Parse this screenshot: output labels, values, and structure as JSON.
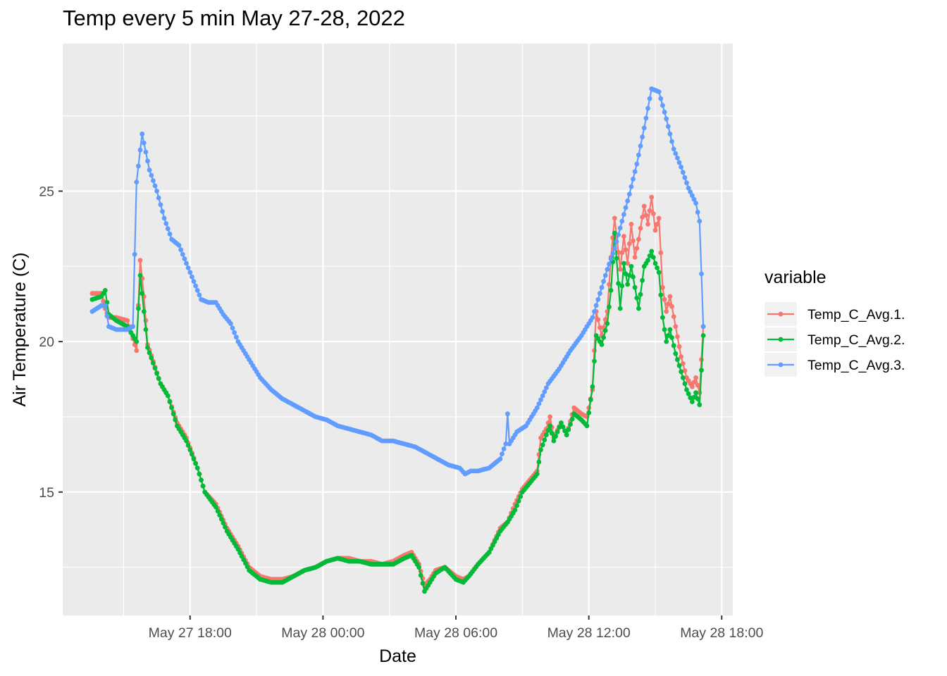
{
  "chart_data": {
    "type": "line",
    "title": "Temp every 5 min May 27-28, 2022",
    "xlabel": "Date",
    "ylabel": "Air Temperature (C)",
    "x_axis_type": "datetime",
    "xlim": [
      "2022-05-27 12:15",
      "2022-05-28 18:30"
    ],
    "ylim": [
      10.9,
      29.9
    ],
    "x_ticks": [
      {
        "t": "2022-05-27 18:00",
        "label": "May 27 18:00"
      },
      {
        "t": "2022-05-28 00:00",
        "label": "May 28 00:00"
      },
      {
        "t": "2022-05-28 06:00",
        "label": "May 28 06:00"
      },
      {
        "t": "2022-05-28 12:00",
        "label": "May 28 12:00"
      },
      {
        "t": "2022-05-28 18:00",
        "label": "May 28 18:00"
      }
    ],
    "y_ticks": [
      15,
      20,
      25
    ],
    "grid": true,
    "legend": {
      "title": "variable",
      "position": "right"
    },
    "series": [
      {
        "name": "Temp_C_Avg.1.",
        "color": "#F8766D",
        "points": [
          [
            "2022-05-27 13:35",
            21.6
          ],
          [
            "2022-05-27 14:00",
            21.6
          ],
          [
            "2022-05-27 14:10",
            21.1
          ],
          [
            "2022-05-27 14:20",
            20.8
          ],
          [
            "2022-05-27 14:40",
            20.8
          ],
          [
            "2022-05-27 15:10",
            20.7
          ],
          [
            "2022-05-27 15:35",
            19.7
          ],
          [
            "2022-05-27 15:45",
            22.7
          ],
          [
            "2022-05-27 15:55",
            21.5
          ],
          [
            "2022-05-27 16:05",
            19.9
          ],
          [
            "2022-05-27 16:40",
            18.6
          ],
          [
            "2022-05-27 17:00",
            18.2
          ],
          [
            "2022-05-27 17:25",
            17.3
          ],
          [
            "2022-05-27 17:50",
            16.8
          ],
          [
            "2022-05-27 18:20",
            15.8
          ],
          [
            "2022-05-27 18:40",
            15.0
          ],
          [
            "2022-05-27 19:10",
            14.6
          ],
          [
            "2022-05-27 19:40",
            13.8
          ],
          [
            "2022-05-27 20:10",
            13.2
          ],
          [
            "2022-05-27 20:40",
            12.5
          ],
          [
            "2022-05-27 21:10",
            12.2
          ],
          [
            "2022-05-27 21:40",
            12.1
          ],
          [
            "2022-05-27 22:10",
            12.1
          ],
          [
            "2022-05-27 22:40",
            12.2
          ],
          [
            "2022-05-27 23:10",
            12.4
          ],
          [
            "2022-05-27 23:40",
            12.5
          ],
          [
            "2022-05-28 00:10",
            12.7
          ],
          [
            "2022-05-28 00:40",
            12.8
          ],
          [
            "2022-05-28 01:10",
            12.8
          ],
          [
            "2022-05-28 01:40",
            12.7
          ],
          [
            "2022-05-28 02:10",
            12.7
          ],
          [
            "2022-05-28 02:40",
            12.6
          ],
          [
            "2022-05-28 03:10",
            12.7
          ],
          [
            "2022-05-28 03:40",
            12.9
          ],
          [
            "2022-05-28 04:00",
            13.0
          ],
          [
            "2022-05-28 04:20",
            12.6
          ],
          [
            "2022-05-28 04:35",
            11.9
          ],
          [
            "2022-05-28 04:50",
            12.1
          ],
          [
            "2022-05-28 05:05",
            12.4
          ],
          [
            "2022-05-28 05:30",
            12.5
          ],
          [
            "2022-05-28 06:00",
            12.2
          ],
          [
            "2022-05-28 06:20",
            12.1
          ],
          [
            "2022-05-28 06:35",
            12.2
          ],
          [
            "2022-05-28 07:00",
            12.6
          ],
          [
            "2022-05-28 07:30",
            13.0
          ],
          [
            "2022-05-28 08:00",
            13.8
          ],
          [
            "2022-05-28 08:20",
            14.0
          ],
          [
            "2022-05-28 08:40",
            14.6
          ],
          [
            "2022-05-28 09:00",
            15.1
          ],
          [
            "2022-05-28 09:20",
            15.4
          ],
          [
            "2022-05-28 09:40",
            15.7
          ],
          [
            "2022-05-28 09:50",
            16.8
          ],
          [
            "2022-05-28 10:05",
            17.1
          ],
          [
            "2022-05-28 10:15",
            17.5
          ],
          [
            "2022-05-28 10:25",
            16.8
          ],
          [
            "2022-05-28 10:45",
            17.3
          ],
          [
            "2022-05-28 11:00",
            16.9
          ],
          [
            "2022-05-28 11:20",
            17.8
          ],
          [
            "2022-05-28 11:40",
            17.6
          ],
          [
            "2022-05-28 11:55",
            17.5
          ],
          [
            "2022-05-28 12:10",
            18.4
          ],
          [
            "2022-05-28 12:20",
            21.0
          ],
          [
            "2022-05-28 12:35",
            20.2
          ],
          [
            "2022-05-28 12:50",
            21.0
          ],
          [
            "2022-05-28 13:00",
            22.8
          ],
          [
            "2022-05-28 13:10",
            24.1
          ],
          [
            "2022-05-28 13:25",
            22.4
          ],
          [
            "2022-05-28 13:35",
            23.5
          ],
          [
            "2022-05-28 13:45",
            22.6
          ],
          [
            "2022-05-28 13:55",
            23.9
          ],
          [
            "2022-05-28 14:05",
            22.8
          ],
          [
            "2022-05-28 14:15",
            23.4
          ],
          [
            "2022-05-28 14:30",
            24.5
          ],
          [
            "2022-05-28 14:40",
            23.9
          ],
          [
            "2022-05-28 14:50",
            24.8
          ],
          [
            "2022-05-28 15:00",
            23.7
          ],
          [
            "2022-05-28 15:10",
            24.1
          ],
          [
            "2022-05-28 15:20",
            21.8
          ],
          [
            "2022-05-28 15:30",
            21.0
          ],
          [
            "2022-05-28 15:40",
            21.5
          ],
          [
            "2022-05-28 15:55",
            20.5
          ],
          [
            "2022-05-28 16:10",
            19.5
          ],
          [
            "2022-05-28 16:25",
            18.8
          ],
          [
            "2022-05-28 16:40",
            18.5
          ],
          [
            "2022-05-28 16:50",
            18.8
          ],
          [
            "2022-05-28 17:00",
            18.3
          ],
          [
            "2022-05-28 17:10",
            20.5
          ]
        ]
      },
      {
        "name": "Temp_C_Avg.2.",
        "color": "#00BA38",
        "points": [
          [
            "2022-05-27 13:35",
            21.4
          ],
          [
            "2022-05-27 14:00",
            21.5
          ],
          [
            "2022-05-27 14:10",
            21.7
          ],
          [
            "2022-05-27 14:20",
            20.9
          ],
          [
            "2022-05-27 14:40",
            20.7
          ],
          [
            "2022-05-27 15:10",
            20.5
          ],
          [
            "2022-05-27 15:35",
            20.0
          ],
          [
            "2022-05-27 15:45",
            22.2
          ],
          [
            "2022-05-27 15:55",
            21.0
          ],
          [
            "2022-05-27 16:05",
            19.8
          ],
          [
            "2022-05-27 16:40",
            18.6
          ],
          [
            "2022-05-27 17:00",
            18.2
          ],
          [
            "2022-05-27 17:25",
            17.2
          ],
          [
            "2022-05-27 17:50",
            16.7
          ],
          [
            "2022-05-27 18:20",
            15.8
          ],
          [
            "2022-05-27 18:40",
            15.0
          ],
          [
            "2022-05-27 19:10",
            14.5
          ],
          [
            "2022-05-27 19:40",
            13.7
          ],
          [
            "2022-05-27 20:10",
            13.1
          ],
          [
            "2022-05-27 20:40",
            12.4
          ],
          [
            "2022-05-27 21:10",
            12.1
          ],
          [
            "2022-05-27 21:40",
            12.0
          ],
          [
            "2022-05-27 22:10",
            12.0
          ],
          [
            "2022-05-27 22:40",
            12.2
          ],
          [
            "2022-05-27 23:10",
            12.4
          ],
          [
            "2022-05-27 23:40",
            12.5
          ],
          [
            "2022-05-28 00:10",
            12.7
          ],
          [
            "2022-05-28 00:40",
            12.8
          ],
          [
            "2022-05-28 01:10",
            12.7
          ],
          [
            "2022-05-28 01:40",
            12.7
          ],
          [
            "2022-05-28 02:10",
            12.6
          ],
          [
            "2022-05-28 02:40",
            12.6
          ],
          [
            "2022-05-28 03:10",
            12.6
          ],
          [
            "2022-05-28 03:40",
            12.8
          ],
          [
            "2022-05-28 04:00",
            12.9
          ],
          [
            "2022-05-28 04:20",
            12.5
          ],
          [
            "2022-05-28 04:35",
            11.7
          ],
          [
            "2022-05-28 04:50",
            12.0
          ],
          [
            "2022-05-28 05:05",
            12.3
          ],
          [
            "2022-05-28 05:30",
            12.5
          ],
          [
            "2022-05-28 06:00",
            12.1
          ],
          [
            "2022-05-28 06:20",
            12.0
          ],
          [
            "2022-05-28 06:35",
            12.2
          ],
          [
            "2022-05-28 07:00",
            12.6
          ],
          [
            "2022-05-28 07:30",
            13.0
          ],
          [
            "2022-05-28 08:00",
            13.7
          ],
          [
            "2022-05-28 08:20",
            14.0
          ],
          [
            "2022-05-28 08:40",
            14.4
          ],
          [
            "2022-05-28 09:00",
            15.0
          ],
          [
            "2022-05-28 09:20",
            15.3
          ],
          [
            "2022-05-28 09:40",
            15.6
          ],
          [
            "2022-05-28 09:50",
            16.4
          ],
          [
            "2022-05-28 10:05",
            16.9
          ],
          [
            "2022-05-28 10:15",
            17.2
          ],
          [
            "2022-05-28 10:25",
            16.7
          ],
          [
            "2022-05-28 10:45",
            17.3
          ],
          [
            "2022-05-28 11:00",
            16.9
          ],
          [
            "2022-05-28 11:20",
            17.6
          ],
          [
            "2022-05-28 11:40",
            17.4
          ],
          [
            "2022-05-28 11:55",
            17.2
          ],
          [
            "2022-05-28 12:10",
            18.5
          ],
          [
            "2022-05-28 12:20",
            20.2
          ],
          [
            "2022-05-28 12:35",
            19.9
          ],
          [
            "2022-05-28 12:50",
            20.6
          ],
          [
            "2022-05-28 13:00",
            21.7
          ],
          [
            "2022-05-28 13:10",
            23.6
          ],
          [
            "2022-05-28 13:25",
            21.1
          ],
          [
            "2022-05-28 13:35",
            22.6
          ],
          [
            "2022-05-28 13:45",
            21.9
          ],
          [
            "2022-05-28 13:55",
            22.5
          ],
          [
            "2022-05-28 14:05",
            21.8
          ],
          [
            "2022-05-28 14:15",
            21.1
          ],
          [
            "2022-05-28 14:30",
            22.5
          ],
          [
            "2022-05-28 14:40",
            22.7
          ],
          [
            "2022-05-28 14:50",
            23.0
          ],
          [
            "2022-05-28 15:00",
            22.6
          ],
          [
            "2022-05-28 15:10",
            22.3
          ],
          [
            "2022-05-28 15:20",
            20.8
          ],
          [
            "2022-05-28 15:30",
            20.0
          ],
          [
            "2022-05-28 15:40",
            20.4
          ],
          [
            "2022-05-28 15:55",
            19.6
          ],
          [
            "2022-05-28 16:10",
            19.0
          ],
          [
            "2022-05-28 16:25",
            18.4
          ],
          [
            "2022-05-28 16:40",
            18.0
          ],
          [
            "2022-05-28 16:50",
            18.3
          ],
          [
            "2022-05-28 17:00",
            17.9
          ],
          [
            "2022-05-28 17:10",
            20.2
          ]
        ]
      },
      {
        "name": "Temp_C_Avg.3.",
        "color": "#619CFF",
        "points": [
          [
            "2022-05-27 13:35",
            21.0
          ],
          [
            "2022-05-27 14:00",
            21.2
          ],
          [
            "2022-05-27 14:10",
            21.2
          ],
          [
            "2022-05-27 14:20",
            20.5
          ],
          [
            "2022-05-27 14:40",
            20.4
          ],
          [
            "2022-05-27 15:10",
            20.4
          ],
          [
            "2022-05-27 15:25",
            20.5
          ],
          [
            "2022-05-27 15:35",
            25.3
          ],
          [
            "2022-05-27 15:50",
            26.9
          ],
          [
            "2022-05-27 16:10",
            25.7
          ],
          [
            "2022-05-27 16:30",
            25.0
          ],
          [
            "2022-05-27 16:50",
            24.1
          ],
          [
            "2022-05-27 17:10",
            23.4
          ],
          [
            "2022-05-27 17:30",
            23.2
          ],
          [
            "2022-05-27 17:50",
            22.6
          ],
          [
            "2022-05-27 18:10",
            22.0
          ],
          [
            "2022-05-27 18:30",
            21.4
          ],
          [
            "2022-05-27 18:50",
            21.3
          ],
          [
            "2022-05-27 19:10",
            21.3
          ],
          [
            "2022-05-27 19:30",
            20.9
          ],
          [
            "2022-05-27 19:50",
            20.6
          ],
          [
            "2022-05-27 20:10",
            20.0
          ],
          [
            "2022-05-27 20:40",
            19.4
          ],
          [
            "2022-05-27 21:10",
            18.8
          ],
          [
            "2022-05-27 21:40",
            18.4
          ],
          [
            "2022-05-27 22:10",
            18.1
          ],
          [
            "2022-05-27 22:40",
            17.9
          ],
          [
            "2022-05-27 23:10",
            17.7
          ],
          [
            "2022-05-27 23:40",
            17.5
          ],
          [
            "2022-05-28 00:10",
            17.4
          ],
          [
            "2022-05-28 00:40",
            17.2
          ],
          [
            "2022-05-28 01:10",
            17.1
          ],
          [
            "2022-05-28 01:40",
            17.0
          ],
          [
            "2022-05-28 02:10",
            16.9
          ],
          [
            "2022-05-28 02:40",
            16.7
          ],
          [
            "2022-05-28 03:10",
            16.7
          ],
          [
            "2022-05-28 03:40",
            16.6
          ],
          [
            "2022-05-28 04:10",
            16.5
          ],
          [
            "2022-05-28 04:40",
            16.3
          ],
          [
            "2022-05-28 05:10",
            16.1
          ],
          [
            "2022-05-28 05:40",
            15.9
          ],
          [
            "2022-05-28 06:10",
            15.8
          ],
          [
            "2022-05-28 06:25",
            15.6
          ],
          [
            "2022-05-28 06:40",
            15.7
          ],
          [
            "2022-05-28 07:00",
            15.7
          ],
          [
            "2022-05-28 07:30",
            15.8
          ],
          [
            "2022-05-28 08:00",
            16.1
          ],
          [
            "2022-05-28 08:15",
            16.6
          ],
          [
            "2022-05-28 08:20",
            17.6
          ],
          [
            "2022-05-28 08:25",
            16.6
          ],
          [
            "2022-05-28 08:45",
            17.0
          ],
          [
            "2022-05-28 09:10",
            17.2
          ],
          [
            "2022-05-28 09:40",
            17.8
          ],
          [
            "2022-05-28 10:10",
            18.6
          ],
          [
            "2022-05-28 10:40",
            19.1
          ],
          [
            "2022-05-28 11:10",
            19.7
          ],
          [
            "2022-05-28 11:40",
            20.2
          ],
          [
            "2022-05-28 12:10",
            20.8
          ],
          [
            "2022-05-28 12:30",
            21.6
          ],
          [
            "2022-05-28 12:50",
            22.4
          ],
          [
            "2022-05-28 13:10",
            23.1
          ],
          [
            "2022-05-28 13:30",
            24.0
          ],
          [
            "2022-05-28 13:50",
            24.9
          ],
          [
            "2022-05-28 14:10",
            25.9
          ],
          [
            "2022-05-28 14:30",
            27.1
          ],
          [
            "2022-05-28 14:50",
            28.4
          ],
          [
            "2022-05-28 15:10",
            28.3
          ],
          [
            "2022-05-28 15:30",
            27.4
          ],
          [
            "2022-05-28 15:50",
            26.4
          ],
          [
            "2022-05-28 16:10",
            25.8
          ],
          [
            "2022-05-28 16:30",
            25.1
          ],
          [
            "2022-05-28 16:50",
            24.6
          ],
          [
            "2022-05-28 17:00",
            24.0
          ],
          [
            "2022-05-28 17:10",
            20.5
          ]
        ]
      }
    ]
  }
}
